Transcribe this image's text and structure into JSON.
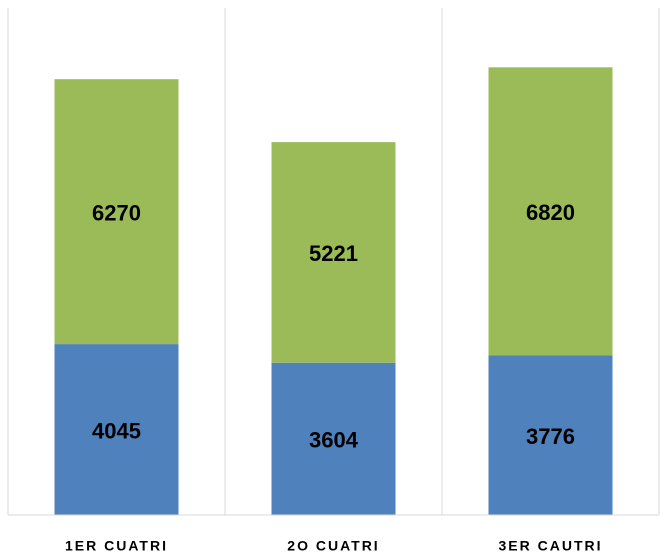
{
  "chart_data": {
    "type": "stacked_bar",
    "categories": [
      "1ER CUATRI",
      "2O CUATRI",
      "3ER CAUTRI"
    ],
    "series": [
      {
        "color": "#4f81bd",
        "values": [
          4045,
          3604,
          3776
        ]
      },
      {
        "color": "#9bbb59",
        "values": [
          6270,
          5221,
          6820
        ]
      }
    ],
    "ylim": [
      0,
      12000
    ]
  }
}
